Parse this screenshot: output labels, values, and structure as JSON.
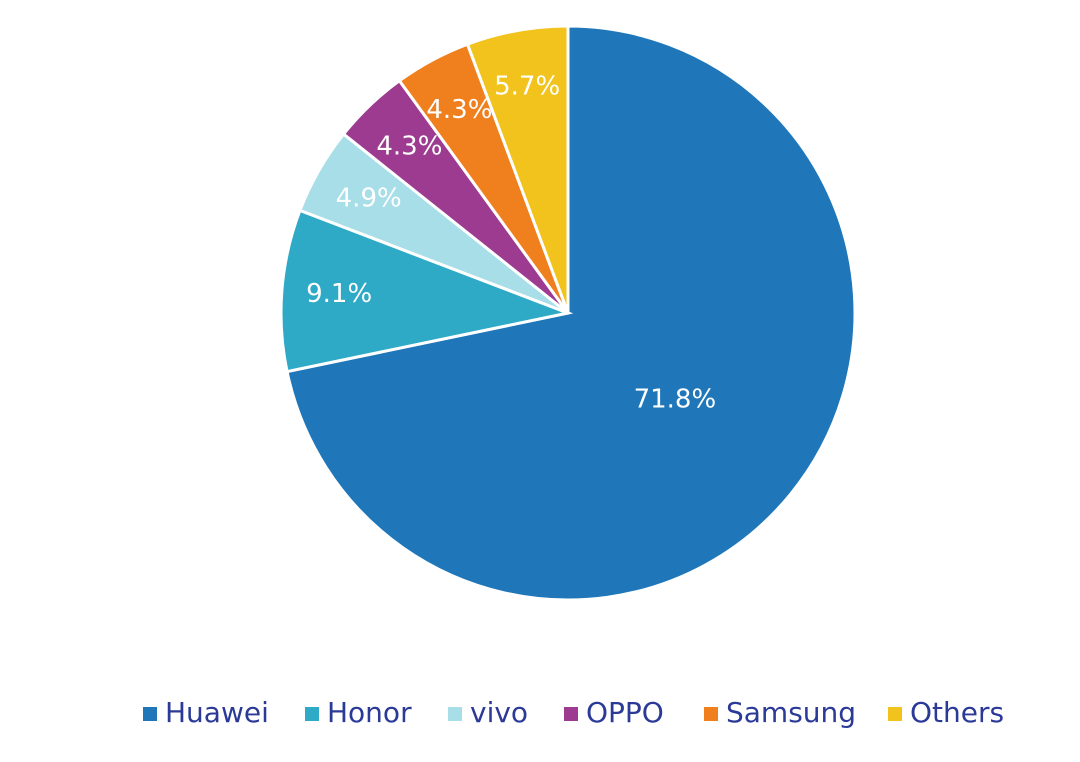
{
  "chart_data": {
    "type": "pie",
    "categories": [
      "Huawei",
      "Honor",
      "vivo",
      "OPPO",
      "Samsung",
      "Others"
    ],
    "values": [
      71.8,
      9.1,
      4.9,
      4.3,
      4.3,
      5.7
    ],
    "value_labels": [
      "71.8%",
      "9.1%",
      "4.9%",
      "4.3%",
      "4.3%",
      "5.7%"
    ],
    "colors": [
      "#1f77b9",
      "#2eaac6",
      "#a7dee8",
      "#9c3b8f",
      "#f07f1e",
      "#f1c31c"
    ],
    "legend": "bottom"
  }
}
